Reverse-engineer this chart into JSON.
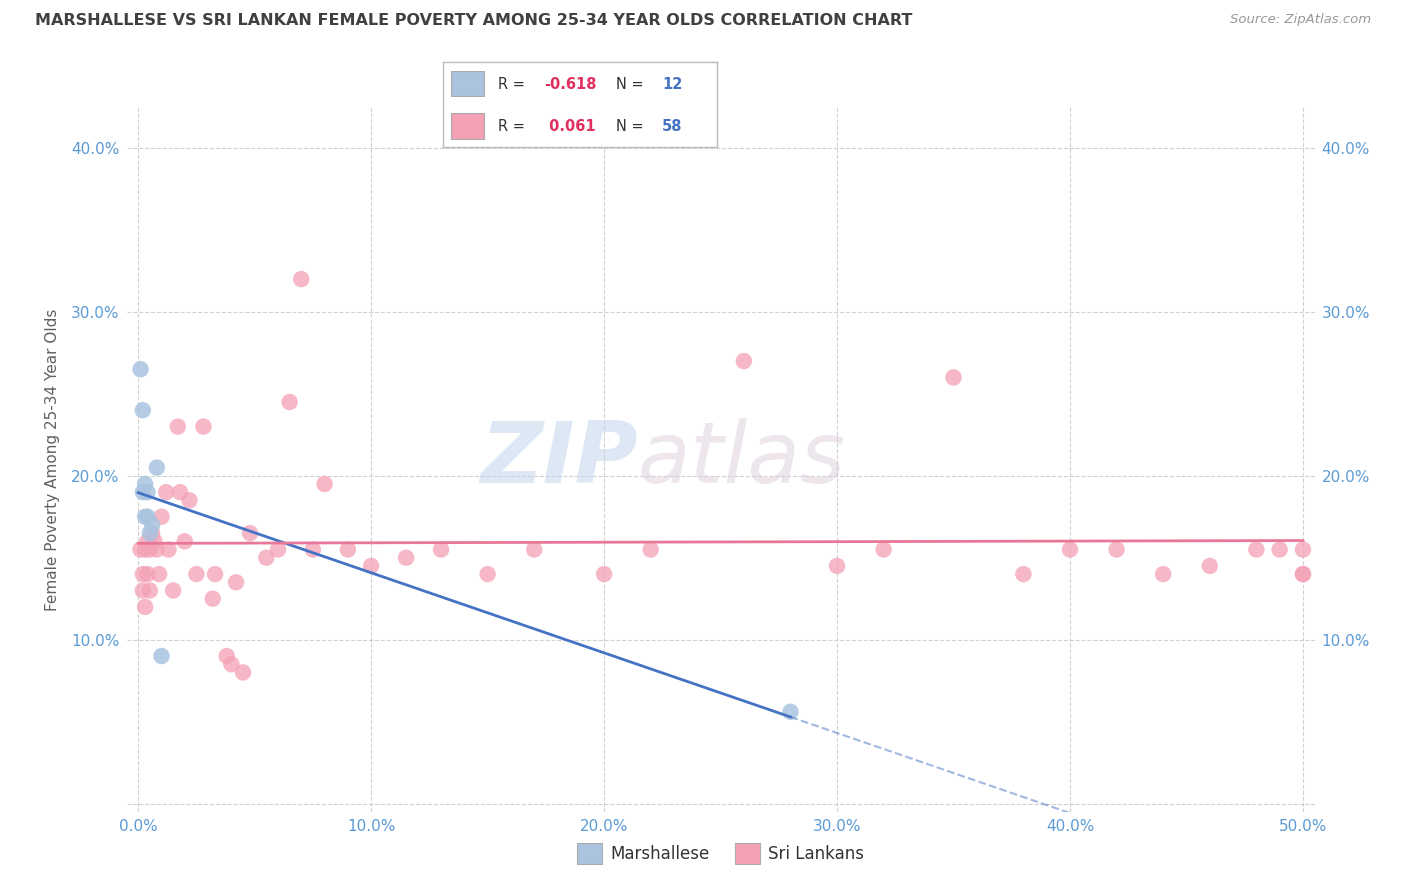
{
  "title": "MARSHALLESE VS SRI LANKAN FEMALE POVERTY AMONG 25-34 YEAR OLDS CORRELATION CHART",
  "source": "Source: ZipAtlas.com",
  "ylabel": "Female Poverty Among 25-34 Year Olds",
  "xlim": [
    -0.005,
    0.505
  ],
  "ylim": [
    -0.005,
    0.425
  ],
  "xticks": [
    0.0,
    0.1,
    0.2,
    0.3,
    0.4,
    0.5
  ],
  "yticks": [
    0.0,
    0.1,
    0.2,
    0.3,
    0.4
  ],
  "xticklabels": [
    "0.0%",
    "10.0%",
    "20.0%",
    "30.0%",
    "40.0%",
    "50.0%"
  ],
  "yticklabels": [
    "",
    "10.0%",
    "20.0%",
    "30.0%",
    "40.0%"
  ],
  "marshallese_x": [
    0.001,
    0.002,
    0.002,
    0.003,
    0.003,
    0.004,
    0.004,
    0.005,
    0.006,
    0.008,
    0.01,
    0.28
  ],
  "marshallese_y": [
    0.265,
    0.24,
    0.19,
    0.195,
    0.175,
    0.19,
    0.175,
    0.165,
    0.17,
    0.205,
    0.09,
    0.056
  ],
  "srilankans_x": [
    0.001,
    0.002,
    0.002,
    0.003,
    0.003,
    0.004,
    0.004,
    0.005,
    0.005,
    0.006,
    0.007,
    0.008,
    0.009,
    0.01,
    0.012,
    0.013,
    0.015,
    0.017,
    0.018,
    0.02,
    0.022,
    0.025,
    0.028,
    0.032,
    0.033,
    0.038,
    0.04,
    0.042,
    0.045,
    0.048,
    0.055,
    0.06,
    0.065,
    0.07,
    0.075,
    0.08,
    0.09,
    0.1,
    0.115,
    0.13,
    0.15,
    0.17,
    0.2,
    0.22,
    0.26,
    0.3,
    0.32,
    0.35,
    0.38,
    0.4,
    0.42,
    0.44,
    0.46,
    0.48,
    0.49,
    0.5,
    0.5,
    0.5
  ],
  "srilankans_y": [
    0.155,
    0.13,
    0.14,
    0.155,
    0.12,
    0.16,
    0.14,
    0.155,
    0.13,
    0.165,
    0.16,
    0.155,
    0.14,
    0.175,
    0.19,
    0.155,
    0.13,
    0.23,
    0.19,
    0.16,
    0.185,
    0.14,
    0.23,
    0.125,
    0.14,
    0.09,
    0.085,
    0.135,
    0.08,
    0.165,
    0.15,
    0.155,
    0.245,
    0.32,
    0.155,
    0.195,
    0.155,
    0.145,
    0.15,
    0.155,
    0.14,
    0.155,
    0.14,
    0.155,
    0.27,
    0.145,
    0.155,
    0.26,
    0.14,
    0.155,
    0.155,
    0.14,
    0.145,
    0.155,
    0.155,
    0.14,
    0.14,
    0.155
  ],
  "marshallese_color": "#aac4e0",
  "srilankans_color": "#f4a0b5",
  "marshallese_line_color": "#4472c4",
  "srilankans_line_color": "#e87898",
  "watermark_zip": "ZIP",
  "watermark_atlas": "atlas",
  "background_color": "#ffffff",
  "grid_color": "#cccccc",
  "tick_color": "#5b9bd5",
  "title_color": "#404040",
  "ylabel_color": "#606060"
}
